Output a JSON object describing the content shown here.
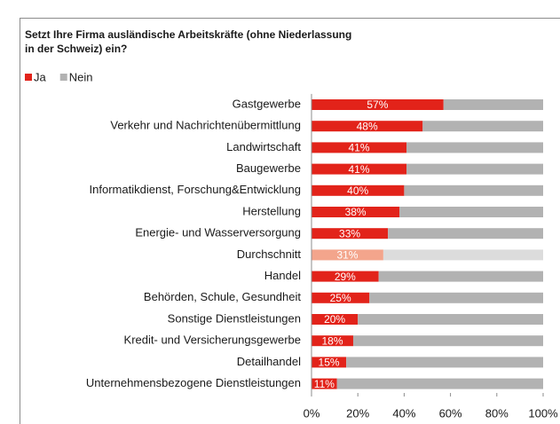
{
  "chart_data": {
    "type": "stacked_barh",
    "title": [
      "Setzt Ihre Firma ausländische Arbeitskräfte (ohne Niederlassung",
      "in der Schweiz) ein?"
    ],
    "categories": [
      "Gastgewerbe",
      "Verkehr und Nachrichtenübermittlung",
      "Landwirtschaft",
      "Baugewerbe",
      "Informatikdienst, Forschung&Entwicklung",
      "Herstellung",
      "Energie- und Wasserversorgung",
      "Durchschnitt",
      "Handel",
      "Behörden, Schule, Gesundheit",
      "Sonstige Dienstleistungen",
      "Kredit- und Versicherungsgewerbe",
      "Detailhandel",
      "Unternehmensbezogene Dienstleistungen"
    ],
    "series": [
      {
        "name": "Ja",
        "color": "#e2231a",
        "colors": [
          "#e2231a",
          "#e2231a",
          "#e2231a",
          "#e2231a",
          "#e2231a",
          "#e2231a",
          "#e2231a",
          "#f3a58c",
          "#e2231a",
          "#e2231a",
          "#e2231a",
          "#e2231a",
          "#e2231a",
          "#e2231a"
        ],
        "values": [
          57,
          48,
          41,
          41,
          40,
          38,
          33,
          31,
          29,
          25,
          20,
          18,
          15,
          11
        ],
        "value_labels": [
          "57%",
          "48%",
          "41%",
          "41%",
          "40%",
          "38%",
          "33%",
          "31%",
          "29%",
          "25%",
          "20%",
          "18%",
          "15%",
          "11%"
        ]
      },
      {
        "name": "Nein",
        "color": "#b2b2b2",
        "colors": [
          "#b2b2b2",
          "#b2b2b2",
          "#b2b2b2",
          "#b2b2b2",
          "#b2b2b2",
          "#b2b2b2",
          "#b2b2b2",
          "#dcdcdc",
          "#b2b2b2",
          "#b2b2b2",
          "#b2b2b2",
          "#b2b2b2",
          "#b2b2b2",
          "#b2b2b2"
        ],
        "values": [
          43,
          52,
          59,
          59,
          60,
          62,
          67,
          69,
          71,
          75,
          80,
          82,
          85,
          89
        ]
      }
    ],
    "xlim": [
      0,
      100
    ],
    "xticks": [
      {
        "value": 0,
        "label": "0%"
      },
      {
        "value": 20,
        "label": "20%"
      },
      {
        "value": 40,
        "label": "40%"
      },
      {
        "value": 60,
        "label": "60%"
      },
      {
        "value": 80,
        "label": "80%"
      },
      {
        "value": 100,
        "label": "100%"
      }
    ],
    "legend": "top-left"
  }
}
